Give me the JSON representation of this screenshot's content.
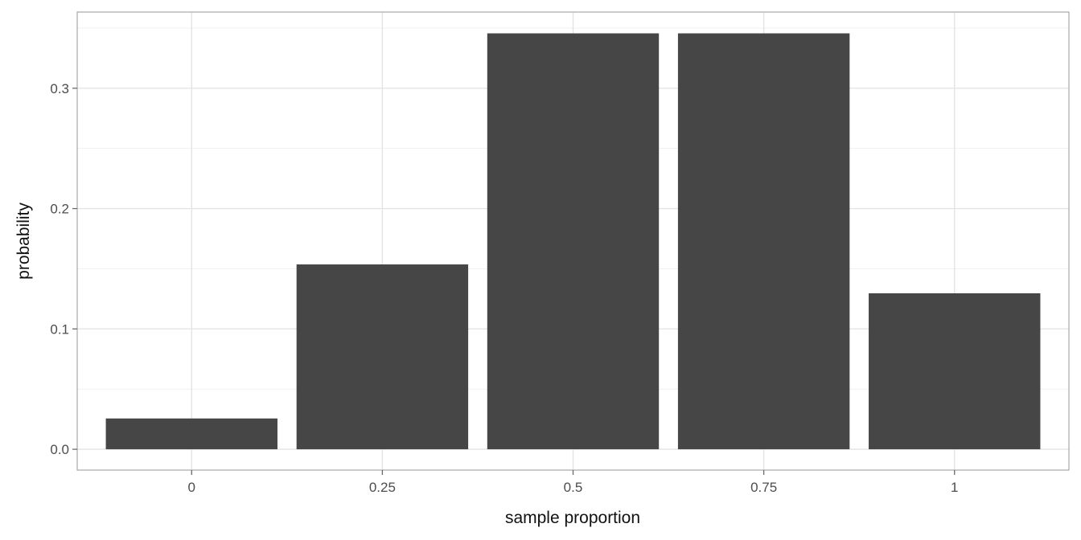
{
  "chart_data": {
    "type": "bar",
    "title": "",
    "xlabel": "sample proportion",
    "ylabel": "probability",
    "x": [
      0,
      0.25,
      0.5,
      0.75,
      1
    ],
    "x_tick_labels": [
      "0",
      "0.25",
      "0.5",
      "0.75",
      "1"
    ],
    "values": [
      0.0256,
      0.1536,
      0.3456,
      0.3456,
      0.1296
    ],
    "bar_width": 0.225,
    "xlim": [
      -0.15,
      1.15
    ],
    "ylim": [
      -0.0173,
      0.3633
    ],
    "y_ticks": [
      0,
      0.1,
      0.2,
      0.3
    ],
    "y_tick_labels": [
      "0.0",
      "0.1",
      "0.2",
      "0.3"
    ],
    "y_minor_ticks": [
      0.05,
      0.15,
      0.25,
      0.35
    ],
    "grid": "horizontal major+minor, vertical major only",
    "legend_position": "none",
    "colors": {
      "background": "#ffffff",
      "panel_background": "#ffffff",
      "bar_fill": "#464646",
      "panel_border": "#a8a8a8",
      "grid_major": "#e4e4e4",
      "grid_minor": "#f1f1f1",
      "tick_mark": "#6b6b6b",
      "tick_label": "#4d4d4d",
      "axis_title": "#111111"
    }
  }
}
